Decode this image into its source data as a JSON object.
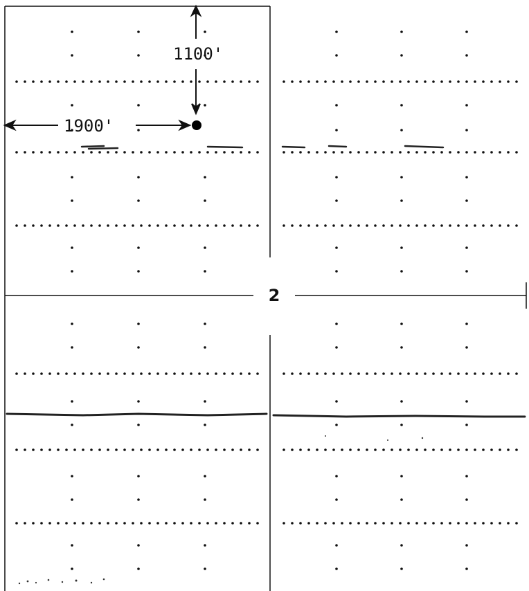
{
  "section_number": "2",
  "location_marker": {
    "distance_from_north_label": "1100'",
    "distance_from_west_label": "1900'"
  },
  "colors": {
    "ink": "#111111",
    "paper": "#ffffff"
  }
}
